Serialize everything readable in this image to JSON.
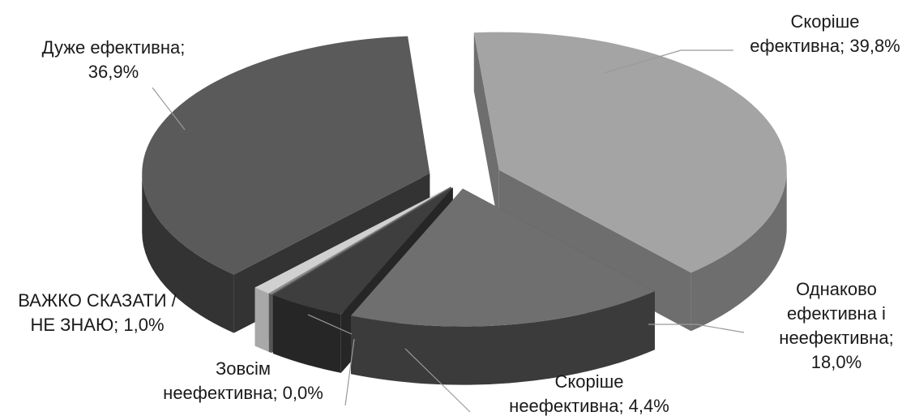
{
  "chart_data": {
    "type": "pie",
    "title": "",
    "slices": [
      {
        "label_lines": [
          "Скоріше",
          "ефективна; 39,8%"
        ],
        "value": 39.8,
        "top": "#a4a4a4",
        "side": "#6e6e6e"
      },
      {
        "label_lines": [
          "Однаково",
          "ефективна і",
          "неефективна;",
          "18,0%"
        ],
        "value": 18.0,
        "top": "#6f6f6f",
        "side": "#3b3b3b"
      },
      {
        "label_lines": [
          "Скоріше",
          "неефективна; 4,4%"
        ],
        "value": 4.4,
        "top": "#3e3e3e",
        "side": "#262626"
      },
      {
        "label_lines": [
          "Зовсім",
          "неефективна; 0,0%"
        ],
        "value": 0.0,
        "top": "#8a8a8a",
        "side": "#555555"
      },
      {
        "label_lines": [
          "ВАЖКО СКАЗАТИ /",
          "НЕ ЗНАЮ; 1,0%"
        ],
        "value": 1.0,
        "top": "#d0d0d0",
        "side": "#a8a8a8"
      },
      {
        "label_lines": [
          "Дуже ефективна;",
          "36,9%"
        ],
        "value": 36.9,
        "top": "#5a5a5a",
        "side": "#333333"
      }
    ],
    "legend": "none",
    "style": "3d-exploded"
  }
}
